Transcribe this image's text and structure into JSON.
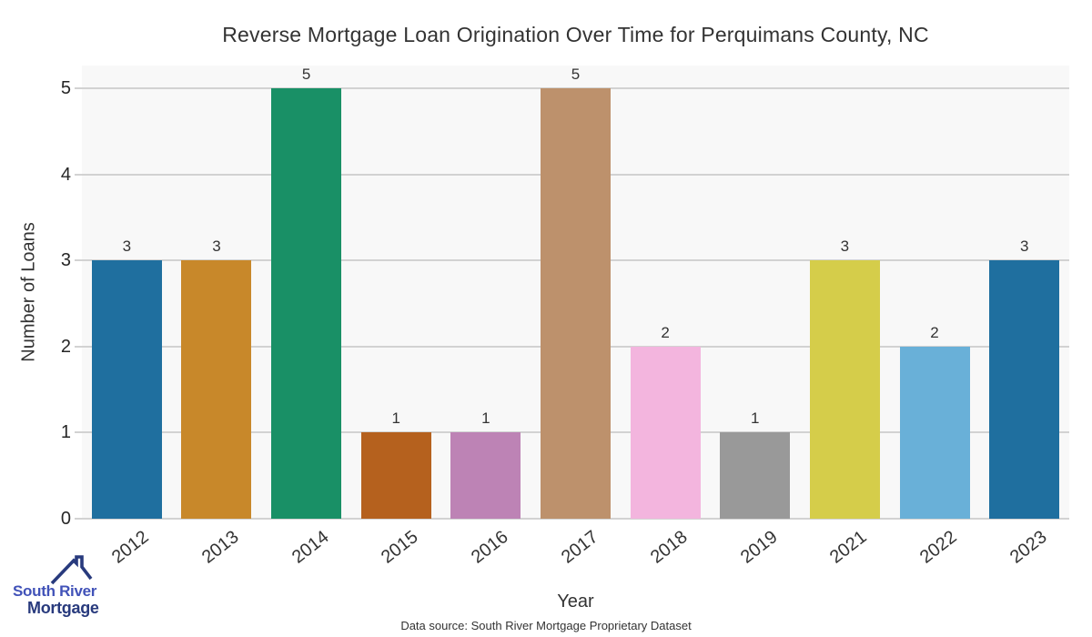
{
  "title": "Reverse Mortgage Loan Origination Over Time for Perquimans County, NC",
  "chart_data": {
    "type": "bar",
    "categories": [
      "2012",
      "2013",
      "2014",
      "2015",
      "2016",
      "2017",
      "2018",
      "2019",
      "2021",
      "2022",
      "2023"
    ],
    "values": [
      3,
      3,
      5,
      1,
      1,
      5,
      2,
      1,
      3,
      2,
      3
    ],
    "bar_colors": [
      "#1f6f9f",
      "#c8882a",
      "#199066",
      "#b5611e",
      "#bd83b5",
      "#bd916c",
      "#f3b5de",
      "#999999",
      "#d5cd4a",
      "#69b0d8",
      "#1f6f9f"
    ],
    "title": "Reverse Mortgage Loan Origination Over Time for Perquimans County, NC",
    "xlabel": "Year",
    "ylabel": "Number of Loans",
    "ylim": [
      0,
      5
    ],
    "yticks": [
      0,
      1,
      2,
      3,
      4,
      5
    ],
    "grid": true,
    "legend": "none",
    "plot_background": "#f8f8f8",
    "gridline_color": "#d2d2d2",
    "value_labels_shown": true
  },
  "caption": "Data source: South River Mortgage Proprietary Dataset",
  "logo": {
    "line1": "South River",
    "line2": "Mortgage",
    "line1_color": "#4152b8",
    "line2_color": "#283a7d",
    "roof_color": "#283a7d"
  }
}
